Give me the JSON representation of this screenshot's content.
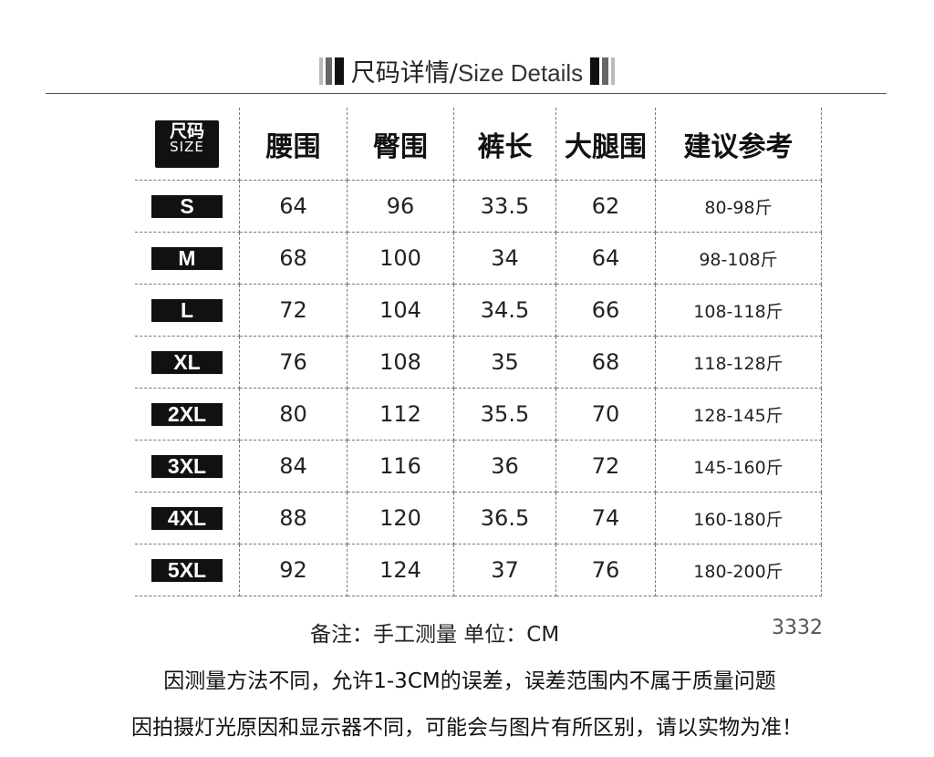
{
  "title": {
    "zh": "尺码详情/",
    "en": "Size Details"
  },
  "table": {
    "size_header": {
      "zh": "尺码",
      "en": "SIZE"
    },
    "columns": [
      "腰围",
      "臀围",
      "裤长",
      "大腿围",
      "建议参考"
    ],
    "rows": [
      {
        "size": "S",
        "values": [
          "64",
          "96",
          "33.5",
          "62",
          "80-98斤"
        ]
      },
      {
        "size": "M",
        "values": [
          "68",
          "100",
          "34",
          "64",
          "98-108斤"
        ]
      },
      {
        "size": "L",
        "values": [
          "72",
          "104",
          "34.5",
          "66",
          "108-118斤"
        ]
      },
      {
        "size": "XL",
        "values": [
          "76",
          "108",
          "35",
          "68",
          "118-128斤"
        ]
      },
      {
        "size": "2XL",
        "values": [
          "80",
          "112",
          "35.5",
          "70",
          "128-145斤"
        ]
      },
      {
        "size": "3XL",
        "values": [
          "84",
          "116",
          "36",
          "72",
          "145-160斤"
        ]
      },
      {
        "size": "4XL",
        "values": [
          "88",
          "120",
          "36.5",
          "74",
          "160-180斤"
        ]
      },
      {
        "size": "5XL",
        "values": [
          "92",
          "124",
          "37",
          "76",
          "180-200斤"
        ]
      }
    ]
  },
  "footer": {
    "note": "备注：手工测量  单位：CM",
    "code": "3332",
    "line1": "因测量方法不同，允许1-3CM的误差，误差范围内不属于质量问题",
    "line2": "因拍摄灯光原因和显示器不同，可能会与图片有所区别，请以实物为准！"
  }
}
